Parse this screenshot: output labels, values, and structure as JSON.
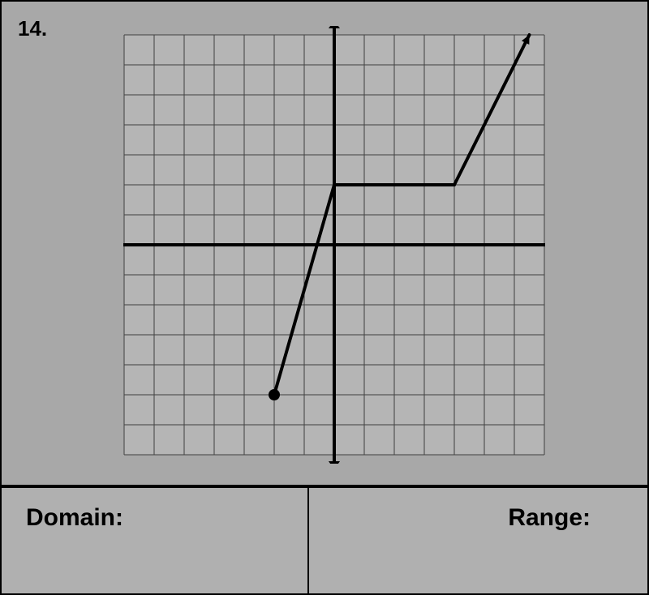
{
  "problem": {
    "number": "14."
  },
  "graph": {
    "type": "coordinate-plane-piecewise",
    "background_color": "#b5b5b5",
    "grid_color": "#404040",
    "axis_color": "#000000",
    "line_color": "#000000",
    "line_width": 4,
    "xlim": [
      -7,
      7
    ],
    "ylim": [
      -7,
      7
    ],
    "grid_step": 1,
    "cell_size": 37,
    "axis_arrowheads": true,
    "segments": [
      {
        "from": [
          -2,
          -5
        ],
        "to": [
          0,
          2
        ],
        "start_style": "closed-dot"
      },
      {
        "from": [
          0,
          2
        ],
        "to": [
          4,
          2
        ]
      },
      {
        "from": [
          4,
          2
        ],
        "to": [
          6.5,
          7
        ],
        "end_style": "arrow"
      }
    ],
    "dot_radius": 7
  },
  "labels": {
    "domain": "Domain:",
    "range": "Range:"
  }
}
